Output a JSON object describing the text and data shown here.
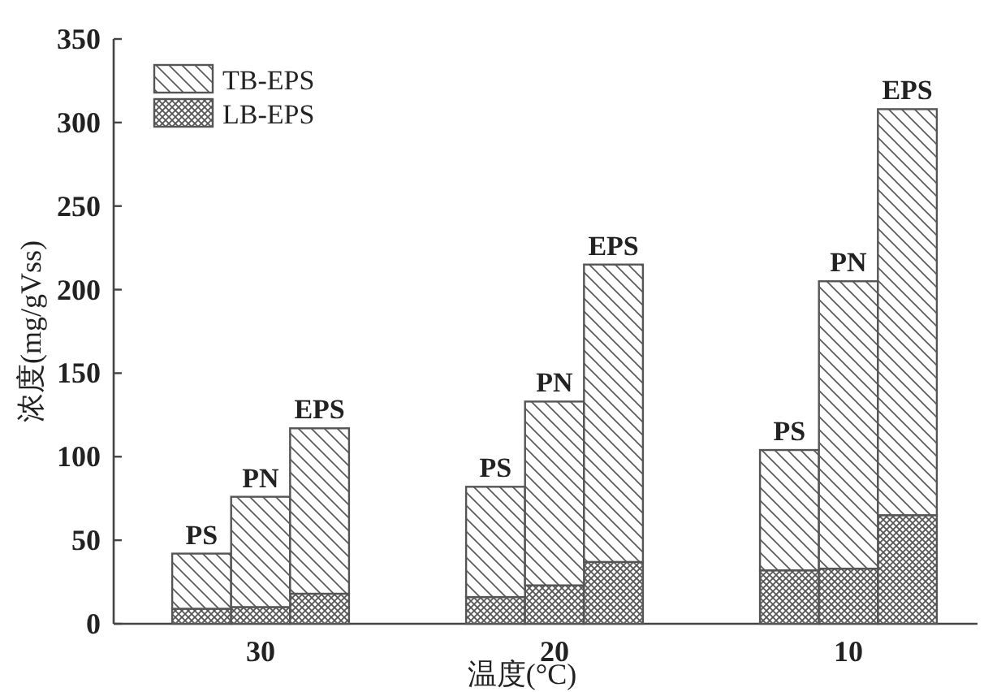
{
  "chart_data": {
    "type": "bar",
    "stacked": true,
    "xlabel": "温度(°C)",
    "ylabel": "浓度(mg/gVss)",
    "categories": [
      null,
      "30",
      null,
      null,
      "20",
      null,
      null,
      "10",
      null
    ],
    "series": [
      {
        "name": "LB-EPS",
        "color": "#555555",
        "values": [
          9,
          10,
          18,
          16,
          23,
          37,
          32,
          33,
          65
        ]
      },
      {
        "name": "TB-EPS",
        "color": "#555555",
        "values": [
          33,
          66,
          99,
          66,
          110,
          178,
          72,
          172,
          243
        ]
      }
    ],
    "annotations": [
      "PS",
      "PN",
      "EPS",
      "PS",
      "PN",
      "EPS",
      "PS",
      "PN",
      "EPS"
    ],
    "ylim": [
      0,
      350
    ],
    "yticks": [
      0,
      50,
      100,
      150,
      200,
      250,
      300,
      350
    ],
    "legend": "top left"
  }
}
